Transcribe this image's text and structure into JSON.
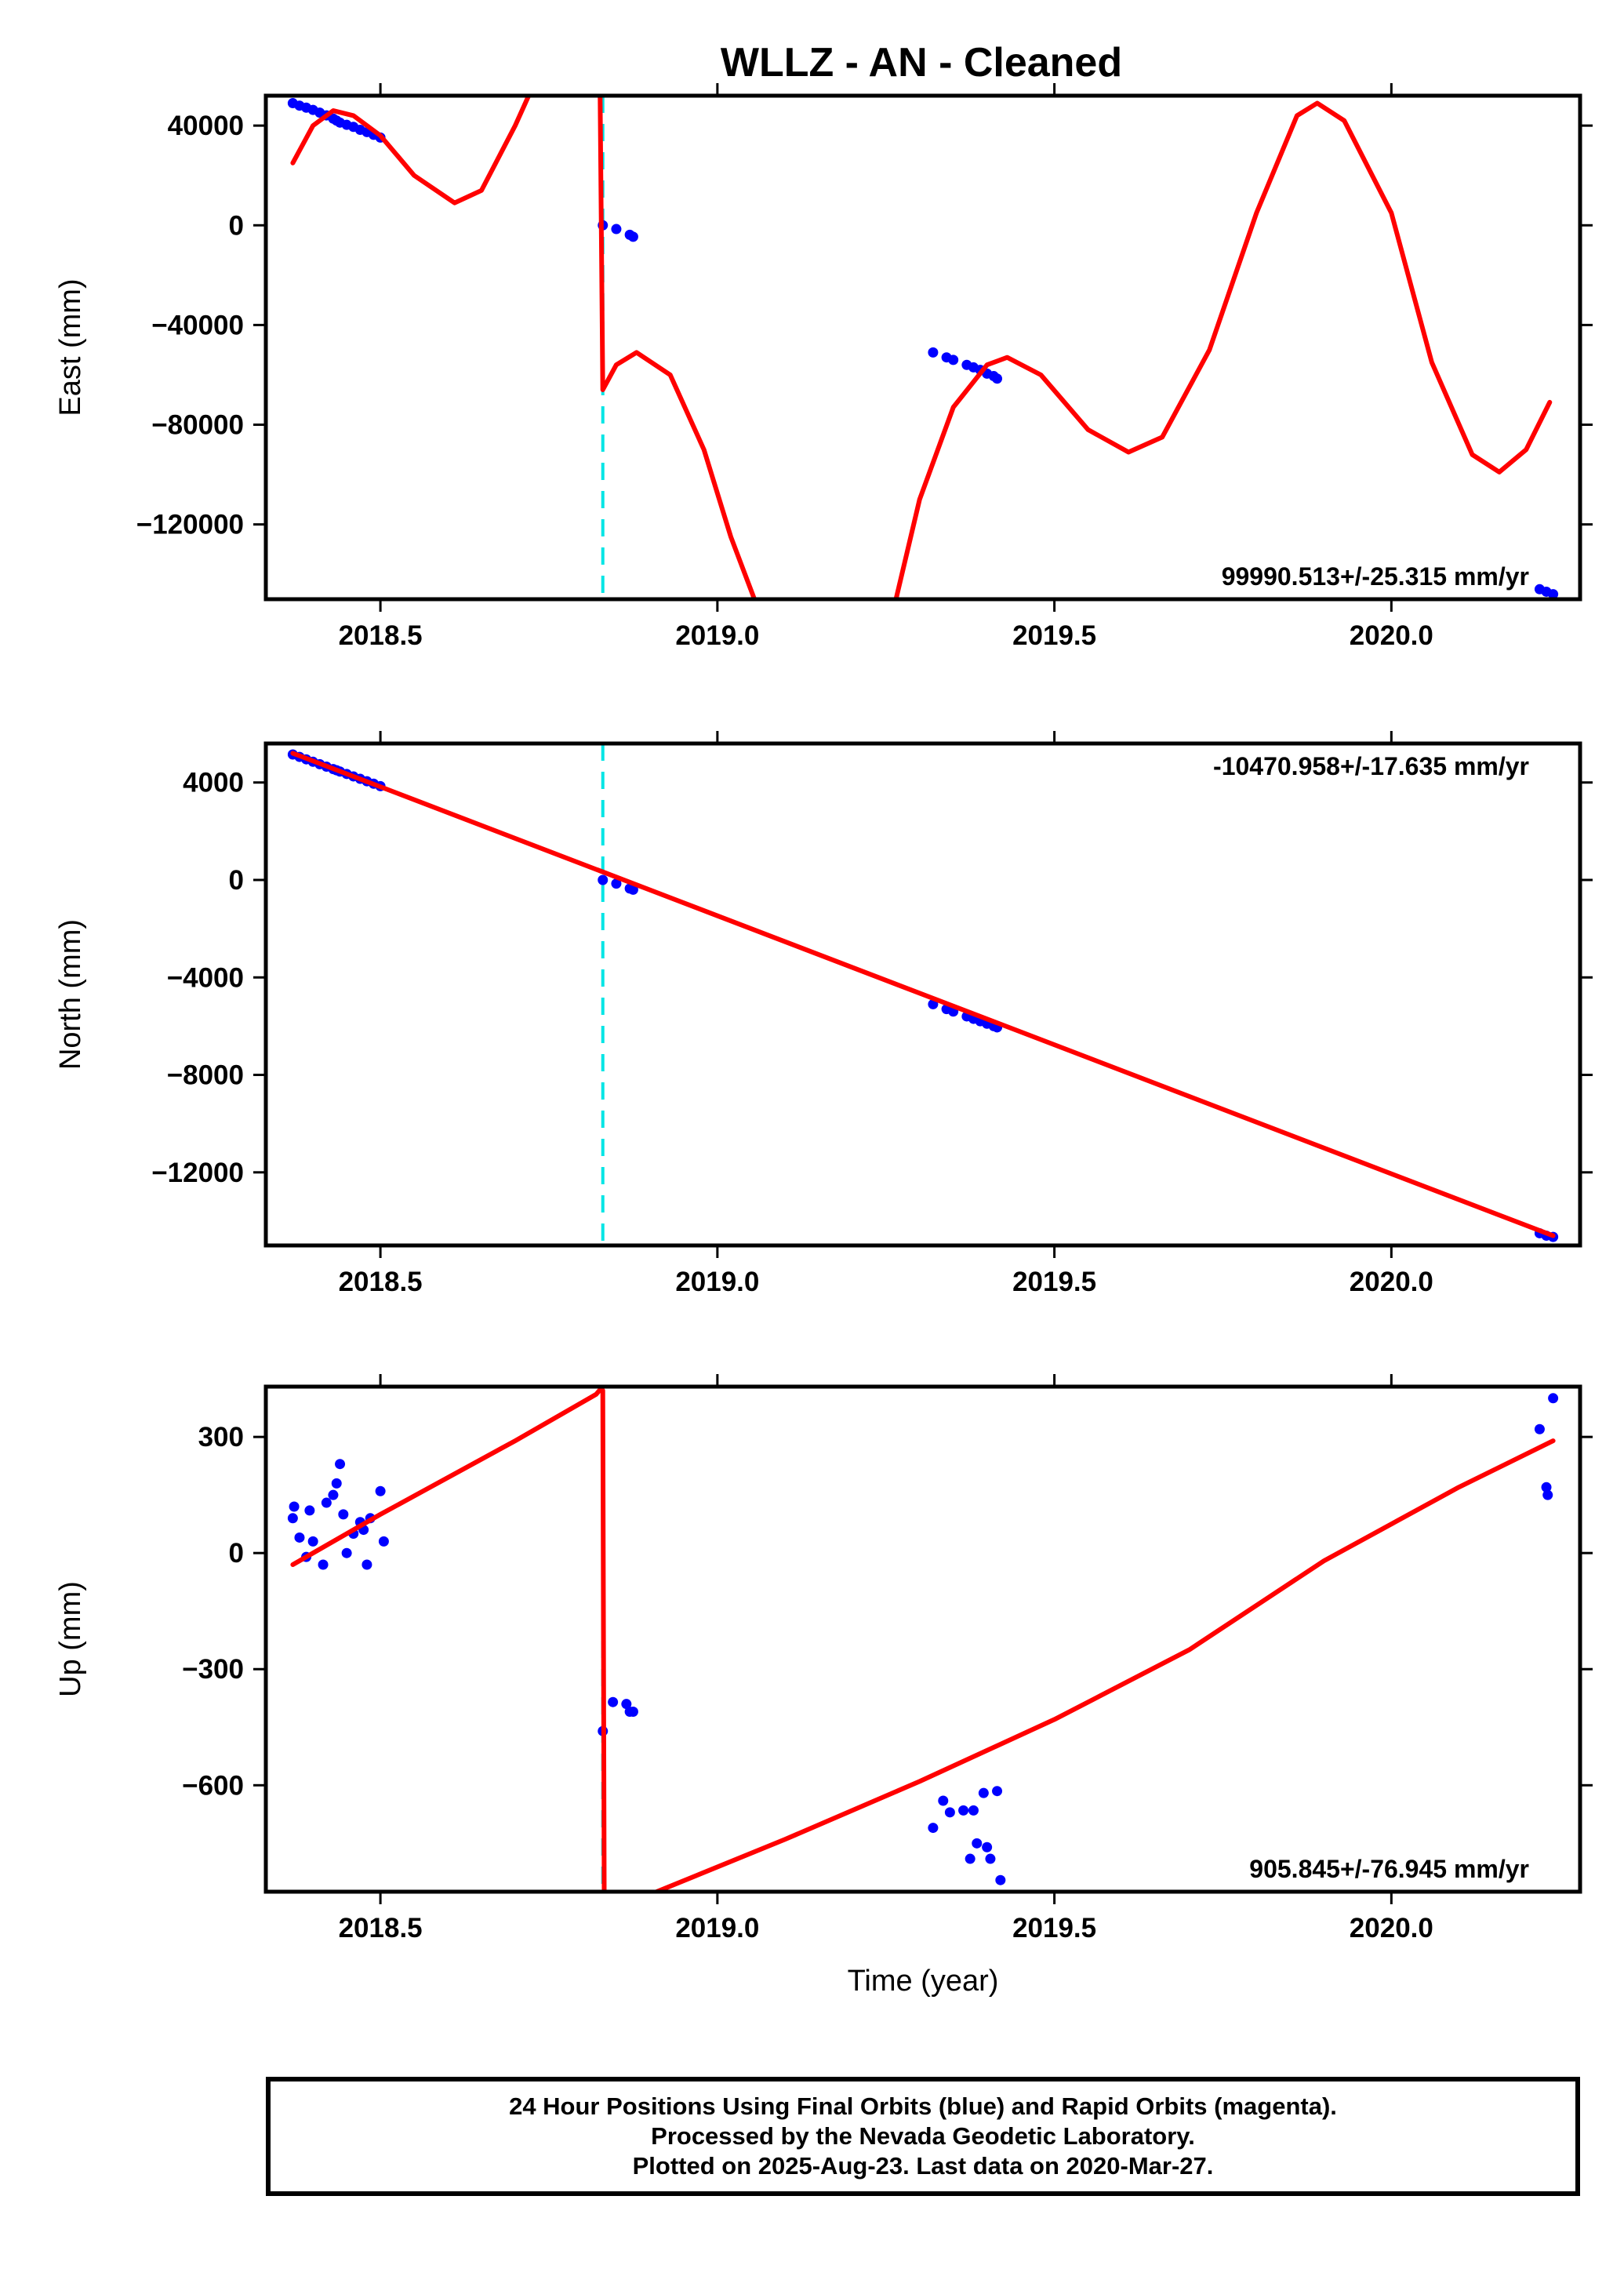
{
  "title": "WLLZ  - AN - Cleaned",
  "footer": {
    "line1": "24 Hour Positions Using Final Orbits (blue) and Rapid Orbits (magenta).",
    "line2": "Processed by the Nevada Geodetic Laboratory.",
    "line3": "Plotted on 2025-Aug-23. Last data on 2020-Mar-27."
  },
  "colors": {
    "data": "#0000ff",
    "model": "#ff0000",
    "break": "#00e5e5",
    "frame": "#000000"
  },
  "chart_data": [
    {
      "type": "scatter",
      "name": "east",
      "ylabel": "East (mm)",
      "xlabel": "",
      "xlim": [
        2018.33,
        2020.28
      ],
      "ylim": [
        -150000,
        52000
      ],
      "xticks": [
        2018.5,
        2019.0,
        2019.5,
        2020.0
      ],
      "xtick_labels": [
        "2018.5",
        "2019.0",
        "2019.5",
        "2020.0"
      ],
      "yticks": [
        40000,
        0,
        -40000,
        -80000,
        -120000
      ],
      "ytick_labels": [
        "40000",
        "0",
        "−40000",
        "−80000",
        "−120000"
      ],
      "rate_label": "99990.513+/-25.315 mm/yr",
      "rate_position": "bottom-right",
      "break_x": 2018.83,
      "points": [
        [
          2018.37,
          49000
        ],
        [
          2018.38,
          48000
        ],
        [
          2018.39,
          47200
        ],
        [
          2018.4,
          46300
        ],
        [
          2018.41,
          45200
        ],
        [
          2018.42,
          44100
        ],
        [
          2018.43,
          42800
        ],
        [
          2018.435,
          42000
        ],
        [
          2018.44,
          41200
        ],
        [
          2018.45,
          40300
        ],
        [
          2018.46,
          39500
        ],
        [
          2018.47,
          38300
        ],
        [
          2018.48,
          37400
        ],
        [
          2018.49,
          36300
        ],
        [
          2018.5,
          35200
        ],
        [
          2018.83,
          0
        ],
        [
          2018.85,
          -1500
        ],
        [
          2018.87,
          -3800
        ],
        [
          2018.875,
          -4600
        ],
        [
          2019.32,
          -51000
        ],
        [
          2019.34,
          -53000
        ],
        [
          2019.35,
          -54000
        ],
        [
          2019.37,
          -56000
        ],
        [
          2019.38,
          -57000
        ],
        [
          2019.39,
          -58000
        ],
        [
          2019.4,
          -59500
        ],
        [
          2019.41,
          -60500
        ],
        [
          2019.415,
          -61500
        ],
        [
          2020.22,
          -146000
        ],
        [
          2020.23,
          -147000
        ],
        [
          2020.24,
          -148000
        ]
      ],
      "model": [
        [
          2018.37,
          25000
        ],
        [
          2018.4,
          40000
        ],
        [
          2018.43,
          46000
        ],
        [
          2018.46,
          44000
        ],
        [
          2018.5,
          36000
        ],
        [
          2018.55,
          20000
        ],
        [
          2018.61,
          9000
        ],
        [
          2018.65,
          14000
        ],
        [
          2018.7,
          40000
        ],
        [
          2018.72,
          52000
        ],
        [
          null,
          null
        ],
        [
          2018.826,
          52000
        ],
        [
          2018.83,
          -66000
        ],
        [
          2018.85,
          -56000
        ],
        [
          2018.88,
          -51000
        ],
        [
          2018.93,
          -60000
        ],
        [
          2018.98,
          -90000
        ],
        [
          2019.02,
          -125000
        ],
        [
          2019.055,
          -150000
        ],
        [
          null,
          null
        ],
        [
          2019.265,
          -150000
        ],
        [
          2019.3,
          -110000
        ],
        [
          2019.35,
          -73000
        ],
        [
          2019.4,
          -56000
        ],
        [
          2019.43,
          -53000
        ],
        [
          2019.48,
          -60000
        ],
        [
          2019.55,
          -82000
        ],
        [
          2019.61,
          -91000
        ],
        [
          2019.66,
          -85000
        ],
        [
          2019.73,
          -50000
        ],
        [
          2019.8,
          5000
        ],
        [
          2019.86,
          44000
        ],
        [
          2019.89,
          49000
        ],
        [
          2019.93,
          42000
        ],
        [
          2020.0,
          5000
        ],
        [
          2020.06,
          -55000
        ],
        [
          2020.12,
          -92000
        ],
        [
          2020.16,
          -99000
        ],
        [
          2020.2,
          -90000
        ],
        [
          2020.235,
          -71000
        ]
      ]
    },
    {
      "type": "scatter",
      "name": "north",
      "ylabel": "North (mm)",
      "xlabel": "",
      "xlim": [
        2018.33,
        2020.28
      ],
      "ylim": [
        -15000,
        5600
      ],
      "xticks": [
        2018.5,
        2019.0,
        2019.5,
        2020.0
      ],
      "xtick_labels": [
        "2018.5",
        "2019.0",
        "2019.5",
        "2020.0"
      ],
      "yticks": [
        4000,
        0,
        -4000,
        -8000,
        -12000
      ],
      "ytick_labels": [
        "4000",
        "0",
        "−4000",
        "−8000",
        "−12000"
      ],
      "rate_label": "-10470.958+/-17.635 mm/yr",
      "rate_position": "top-right",
      "break_x": 2018.83,
      "points": [
        [
          2018.37,
          5150
        ],
        [
          2018.38,
          5050
        ],
        [
          2018.39,
          4950
        ],
        [
          2018.4,
          4850
        ],
        [
          2018.41,
          4750
        ],
        [
          2018.42,
          4650
        ],
        [
          2018.43,
          4550
        ],
        [
          2018.435,
          4500
        ],
        [
          2018.44,
          4450
        ],
        [
          2018.45,
          4350
        ],
        [
          2018.46,
          4250
        ],
        [
          2018.47,
          4150
        ],
        [
          2018.48,
          4050
        ],
        [
          2018.49,
          3950
        ],
        [
          2018.5,
          3850
        ],
        [
          2018.83,
          0
        ],
        [
          2018.85,
          -150
        ],
        [
          2018.87,
          -350
        ],
        [
          2018.875,
          -400
        ],
        [
          2019.32,
          -5100
        ],
        [
          2019.34,
          -5300
        ],
        [
          2019.35,
          -5400
        ],
        [
          2019.37,
          -5600
        ],
        [
          2019.38,
          -5700
        ],
        [
          2019.39,
          -5800
        ],
        [
          2019.4,
          -5900
        ],
        [
          2019.41,
          -6000
        ],
        [
          2019.415,
          -6050
        ],
        [
          2020.22,
          -14500
        ],
        [
          2020.23,
          -14600
        ],
        [
          2020.24,
          -14650
        ]
      ],
      "model": [
        [
          2018.37,
          5200
        ],
        [
          2020.24,
          -14600
        ]
      ]
    },
    {
      "type": "scatter",
      "name": "up",
      "ylabel": "Up (mm)",
      "xlabel": "Time (year)",
      "xlim": [
        2018.33,
        2020.28
      ],
      "ylim": [
        -875,
        430
      ],
      "xticks": [
        2018.5,
        2019.0,
        2019.5,
        2020.0
      ],
      "xtick_labels": [
        "2018.5",
        "2019.0",
        "2019.5",
        "2020.0"
      ],
      "yticks": [
        300,
        0,
        -300,
        -600
      ],
      "ytick_labels": [
        "300",
        "0",
        "−300",
        "−600"
      ],
      "rate_label": "905.845+/-76.945 mm/yr",
      "rate_position": "bottom-right",
      "break_x": 2018.83,
      "points": [
        [
          2018.37,
          90
        ],
        [
          2018.372,
          120
        ],
        [
          2018.38,
          40
        ],
        [
          2018.39,
          -10
        ],
        [
          2018.395,
          110
        ],
        [
          2018.4,
          30
        ],
        [
          2018.415,
          -30
        ],
        [
          2018.42,
          130
        ],
        [
          2018.43,
          150
        ],
        [
          2018.435,
          180
        ],
        [
          2018.44,
          230
        ],
        [
          2018.445,
          100
        ],
        [
          2018.45,
          0
        ],
        [
          2018.46,
          50
        ],
        [
          2018.47,
          80
        ],
        [
          2018.475,
          60
        ],
        [
          2018.48,
          -30
        ],
        [
          2018.485,
          90
        ],
        [
          2018.5,
          160
        ],
        [
          2018.505,
          30
        ],
        [
          2018.83,
          -460
        ],
        [
          2018.845,
          -385
        ],
        [
          2018.865,
          -390
        ],
        [
          2018.87,
          -410
        ],
        [
          2018.875,
          -410
        ],
        [
          2019.32,
          -710
        ],
        [
          2019.335,
          -640
        ],
        [
          2019.345,
          -670
        ],
        [
          2019.365,
          -665
        ],
        [
          2019.375,
          -790
        ],
        [
          2019.38,
          -665
        ],
        [
          2019.385,
          -750
        ],
        [
          2019.395,
          -620
        ],
        [
          2019.4,
          -760
        ],
        [
          2019.405,
          -790
        ],
        [
          2019.415,
          -615
        ],
        [
          2019.42,
          -845
        ],
        [
          2020.22,
          320
        ],
        [
          2020.23,
          170
        ],
        [
          2020.232,
          150
        ],
        [
          2020.24,
          400
        ]
      ],
      "model": [
        [
          2018.37,
          -30
        ],
        [
          2018.5,
          100
        ],
        [
          2018.7,
          290
        ],
        [
          2018.82,
          410
        ],
        [
          2018.825,
          420
        ],
        [
          2018.83,
          420
        ],
        [
          2018.832,
          -875
        ],
        [
          null,
          null
        ],
        [
          2018.91,
          -875
        ],
        [
          2019.1,
          -740
        ],
        [
          2019.3,
          -590
        ],
        [
          2019.5,
          -430
        ],
        [
          2019.7,
          -250
        ],
        [
          2019.9,
          -20
        ],
        [
          2020.1,
          170
        ],
        [
          2020.24,
          290
        ]
      ]
    }
  ]
}
